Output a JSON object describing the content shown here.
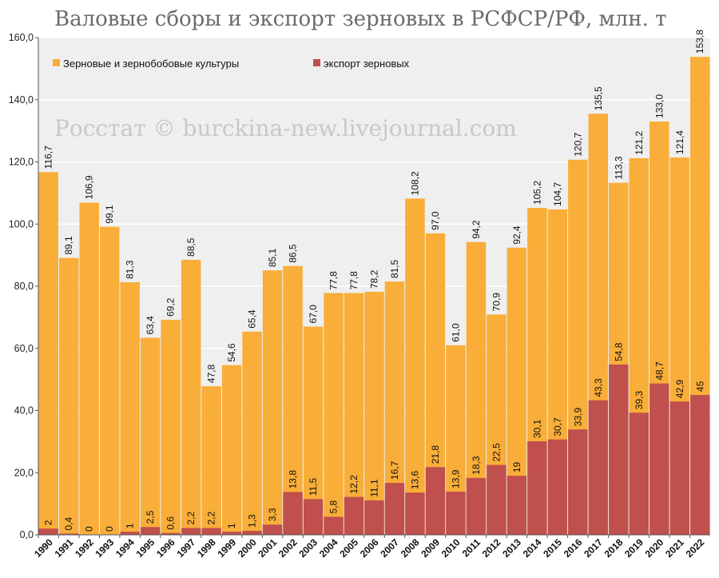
{
  "title": "Валовые сборы и экспорт зерновых в РСФСР/РФ, млн. т",
  "watermark": "Росстат © burckina-new.livejournal.com",
  "colors": {
    "harvest": "#f9ae39",
    "export": "#c0504d",
    "plot_bg": "#efefef",
    "grid": "#ffffff",
    "axis": "#555555"
  },
  "chart_data": {
    "type": "bar",
    "title": "Валовые сборы и экспорт зерновых в РСФСР/РФ, млн. т",
    "xlabel": "",
    "ylabel": "",
    "ylim": [
      0,
      160
    ],
    "grid": true,
    "legend_position": "top",
    "categories": [
      "1990",
      "1991",
      "1992",
      "1993",
      "1994",
      "1995",
      "1996",
      "1997",
      "1998",
      "1999",
      "2000",
      "2001",
      "2002",
      "2003",
      "2004",
      "2005",
      "2006",
      "2007",
      "2008",
      "2009",
      "2010",
      "2011",
      "2012",
      "2013",
      "2014",
      "2015",
      "2016",
      "2017",
      "2018",
      "2019",
      "2020",
      "2021",
      "2022"
    ],
    "yticks": [
      "0,0",
      "20,0",
      "40,0",
      "60,0",
      "80,0",
      "100,0",
      "120,0",
      "140,0",
      "160,0"
    ],
    "series": [
      {
        "name": "Зерновые и зернобобовые культуры",
        "values": [
          116.7,
          89.1,
          106.9,
          99.1,
          81.3,
          63.4,
          69.2,
          88.5,
          47.8,
          54.6,
          65.4,
          85.1,
          86.5,
          67.0,
          77.8,
          77.8,
          78.2,
          81.5,
          108.2,
          97.0,
          61.0,
          94.2,
          70.9,
          92.4,
          105.2,
          104.7,
          120.7,
          135.5,
          113.3,
          121.2,
          133.0,
          121.4,
          153.8
        ],
        "labels": [
          "116,7",
          "89,1",
          "106,9",
          "99,1",
          "81,3",
          "63,4",
          "69,2",
          "88,5",
          "47,8",
          "54,6",
          "65,4",
          "85,1",
          "86,5",
          "67,0",
          "77,8",
          "77,8",
          "78,2",
          "81,5",
          "108,2",
          "97,0",
          "61,0",
          "94,2",
          "70,9",
          "92,4",
          "105,2",
          "104,7",
          "120,7",
          "135,5",
          "113,3",
          "121,2",
          "133,0",
          "121,4",
          "153,8"
        ]
      },
      {
        "name": "экспорт зерновых",
        "values": [
          2,
          0.4,
          0,
          0,
          1,
          2.5,
          0.6,
          2.2,
          2.2,
          1,
          1.3,
          3.3,
          13.8,
          11.5,
          5.8,
          12.2,
          11.1,
          16.7,
          13.6,
          21.8,
          13.9,
          18.3,
          22.5,
          19,
          30.1,
          30.7,
          33.9,
          43.3,
          54.8,
          39.3,
          48.7,
          42.9,
          45
        ],
        "labels": [
          "2",
          "0,4",
          "0",
          "0",
          "1",
          "2,5",
          "0,6",
          "2,2",
          "2,2",
          "1",
          "1,3",
          "3,3",
          "13,8",
          "11,5",
          "5,8",
          "12,2",
          "11,1",
          "16,7",
          "13,6",
          "21,8",
          "13,9",
          "18,3",
          "22,5",
          "19",
          "30,1",
          "30,7",
          "33,9",
          "43,3",
          "54,8",
          "39,3",
          "48,7",
          "42,9",
          "45"
        ]
      }
    ]
  }
}
